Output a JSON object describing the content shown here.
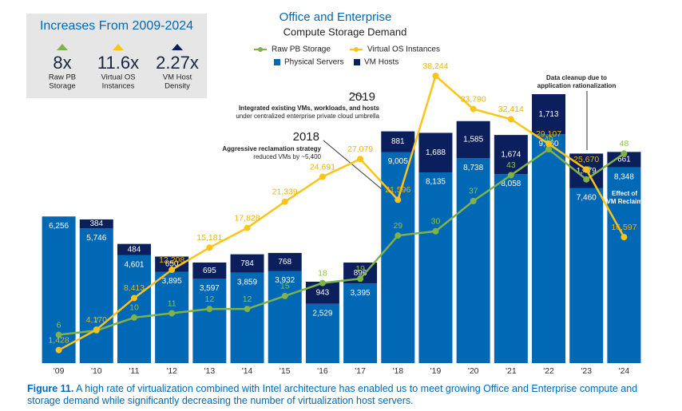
{
  "chart_data": {
    "type": "bar",
    "title": "Office and Enterprise",
    "subtitle": "Compute Storage Demand",
    "categories": [
      "'09",
      "'10",
      "'11",
      "'12",
      "'13",
      "'14",
      "'15",
      "'16",
      "'17",
      "'18",
      "'19",
      "'20",
      "'21",
      "'22",
      "'23",
      "'24"
    ],
    "stacked": true,
    "series": [
      {
        "name": "Physical Servers",
        "type": "bar",
        "color": "#0068b5",
        "values": [
          6256,
          5746,
          4601,
          3895,
          3597,
          3859,
          3932,
          2529,
          3395,
          9005,
          8135,
          8738,
          8058,
          9760,
          7460,
          8348
        ],
        "value_labels": [
          "6,256",
          "5,746",
          "4,601",
          "3,895",
          "3,597",
          "3,859",
          "3,932",
          "2,529",
          "3,395",
          "9,005",
          "8,135",
          "8,738",
          "8,058",
          "9,760",
          "7,460",
          "8,348"
        ]
      },
      {
        "name": "VM Hosts",
        "type": "bar",
        "color": "#0b1f5c",
        "values": [
          null,
          384,
          484,
          650,
          695,
          784,
          768,
          943,
          896,
          881,
          1688,
          1585,
          1674,
          1713,
          1479,
          661
        ],
        "value_labels": [
          null,
          "384",
          "484",
          "650",
          "695",
          "784",
          "768",
          "943",
          "896",
          "881",
          "1,688",
          "1,585",
          "1,674",
          "1,713",
          "1,479",
          "661"
        ]
      },
      {
        "name": "Raw PB Storage",
        "type": "line",
        "color": "#7fb24a",
        "values": [
          6,
          7,
          10,
          11,
          12,
          12,
          15,
          18,
          19,
          29,
          30,
          37,
          43,
          49,
          42,
          48
        ]
      },
      {
        "name": "Virtual OS Instances",
        "type": "line",
        "color": "#fcc419",
        "values": [
          1428,
          4170,
          8413,
          12208,
          15181,
          17828,
          21339,
          24691,
          27079,
          21596,
          38244,
          33790,
          32414,
          29107,
          25670,
          16597
        ],
        "value_labels": [
          "1,428",
          "4,170",
          "8,413",
          "12,208",
          "15,181",
          "17,828",
          "21,339",
          "24,691",
          "27,079",
          "21,596",
          "38,244",
          "33,790",
          "32,414",
          "29,107",
          "25,670",
          "16,597"
        ]
      }
    ],
    "inset": {
      "title": "Increases From 2009-2024",
      "items": [
        {
          "value": "8x",
          "lines": [
            "Raw PB",
            "Storage"
          ],
          "color": "#7fb24a"
        },
        {
          "value": "11.6x",
          "lines": [
            "Virtual OS",
            "Instances"
          ],
          "color": "#fcc419"
        },
        {
          "value": "2.27x",
          "lines": [
            "VM Host",
            "Density"
          ],
          "color": "#0b1f5c"
        }
      ]
    },
    "annotations": [
      {
        "heading": "2019",
        "lines": [
          "Integrated existing VMs, workloads, and hosts",
          "under centralized enterprise private cloud umbrella"
        ]
      },
      {
        "heading": "2018",
        "lines": [
          "Aggressive reclamation strategy",
          "reduced VMs by ~5,400"
        ]
      },
      {
        "heading": null,
        "lines": [
          "Data cleanup due to",
          "application rationalization"
        ]
      },
      {
        "heading": null,
        "lines": [
          "Effect of",
          "VM Reclaim"
        ]
      }
    ],
    "caption": {
      "label": "Figure 11.",
      "text": "A high rate of virtualization combined with Intel architecture has enabled us to meet growing Office and Enterprise compute and storage demand while significantly decreasing the number of virtualization host servers."
    }
  }
}
